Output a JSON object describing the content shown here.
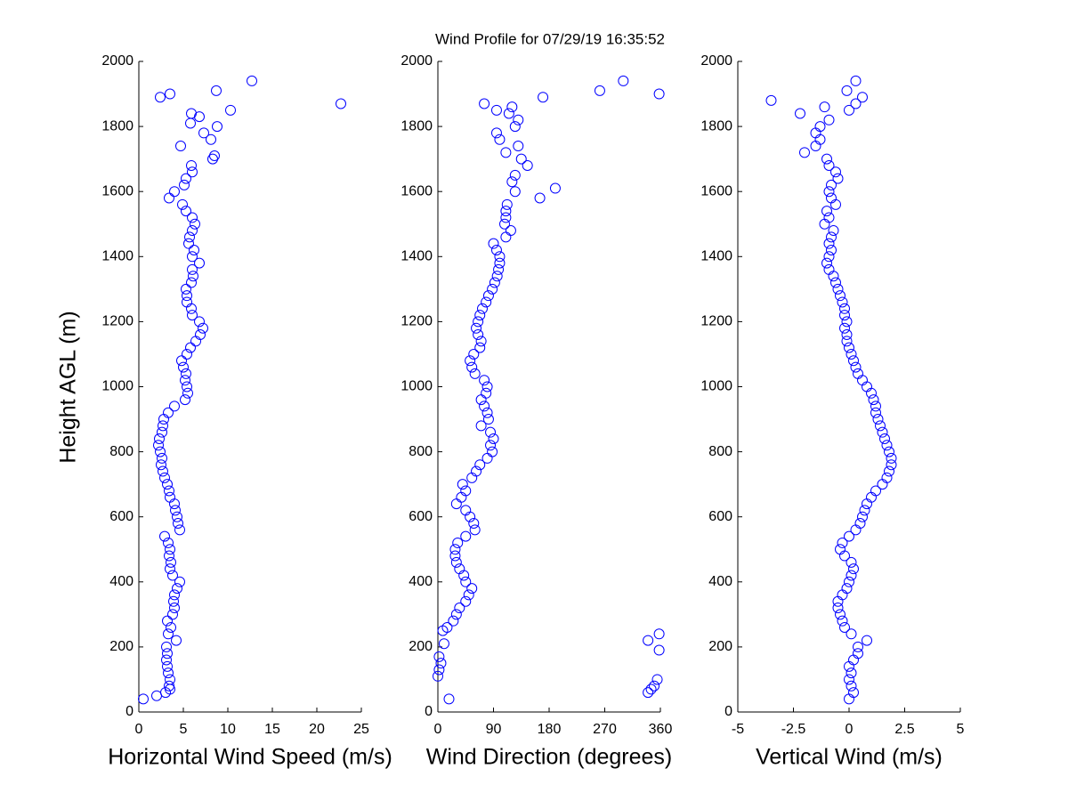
{
  "chart_data": [
    {
      "type": "scatter",
      "xlabel": "Horizontal Wind Speed (m/s)",
      "ylabel": "Height AGL (m)",
      "color": "#0000ff",
      "xlim": [
        0,
        25
      ],
      "xticks": [
        0,
        5,
        10,
        15,
        20,
        25
      ],
      "ylim": [
        0,
        2000
      ],
      "yticks": [
        0,
        200,
        400,
        600,
        800,
        1000,
        1200,
        1400,
        1600,
        1800,
        2000
      ],
      "x": [
        0.5,
        2,
        3,
        3.5,
        3.4,
        3.5,
        3.3,
        3.2,
        3.1,
        3.2,
        3.1,
        4.2,
        3.3,
        3.6,
        3.2,
        3.8,
        4,
        3.9,
        4,
        4.3,
        4.6,
        3.8,
        3.5,
        3.6,
        3.4,
        3.5,
        3.3,
        2.9,
        4.6,
        4.4,
        4.3,
        4.1,
        4,
        3.5,
        3.4,
        3.2,
        2.9,
        2.7,
        2.5,
        2.6,
        2.4,
        2.2,
        2.3,
        2.6,
        2.7,
        2.8,
        3.3,
        4,
        5.2,
        5.5,
        5.4,
        5.2,
        5.3,
        5,
        4.8,
        5.4,
        5.8,
        6.4,
        6.9,
        7.2,
        6.8,
        6,
        5.9,
        5.4,
        5.4,
        5.3,
        5.9,
        6.1,
        6,
        6.8,
        6,
        6.2,
        5.6,
        5.7,
        6,
        6.3,
        6,
        5.3,
        4.9,
        3.4,
        4,
        5.1,
        5.3,
        6,
        5.9,
        8.3,
        8.5,
        4.7,
        8.1,
        7.3,
        8.8,
        5.8,
        6.8,
        5.9,
        10.3,
        22.7,
        2.4,
        3.5,
        8.7,
        12.7
      ],
      "y": [
        40,
        50,
        60,
        70,
        80,
        100,
        120,
        140,
        160,
        180,
        200,
        220,
        240,
        260,
        280,
        300,
        320,
        340,
        360,
        380,
        400,
        420,
        440,
        460,
        480,
        500,
        520,
        540,
        560,
        580,
        600,
        620,
        640,
        660,
        680,
        700,
        720,
        740,
        760,
        780,
        800,
        820,
        840,
        860,
        880,
        900,
        920,
        940,
        960,
        980,
        1000,
        1020,
        1040,
        1060,
        1080,
        1100,
        1120,
        1140,
        1160,
        1180,
        1200,
        1220,
        1240,
        1260,
        1280,
        1300,
        1320,
        1340,
        1360,
        1380,
        1400,
        1420,
        1440,
        1460,
        1480,
        1500,
        1520,
        1540,
        1560,
        1580,
        1600,
        1620,
        1640,
        1660,
        1680,
        1700,
        1710,
        1740,
        1760,
        1780,
        1800,
        1810,
        1830,
        1840,
        1850,
        1870,
        1890,
        1900,
        1910,
        1940
      ]
    },
    {
      "type": "scatter",
      "title": "Wind Profile for  07/29/19 16:35:52",
      "xlabel": "Wind Direction (degrees)",
      "color": "#0000ff",
      "xlim": [
        0,
        360
      ],
      "xticks": [
        0,
        90,
        180,
        270,
        360
      ],
      "ylim": [
        0,
        2000
      ],
      "yticks": [
        0,
        200,
        400,
        600,
        800,
        1000,
        1200,
        1400,
        1600,
        1800,
        2000
      ],
      "x": [
        18,
        340,
        345,
        350,
        355,
        0,
        2,
        5,
        2,
        358,
        10,
        340,
        358,
        8,
        15,
        25,
        30,
        35,
        45,
        50,
        55,
        45,
        42,
        35,
        30,
        28,
        28,
        32,
        45,
        60,
        58,
        52,
        45,
        30,
        38,
        45,
        40,
        55,
        62,
        68,
        80,
        88,
        85,
        90,
        85,
        70,
        82,
        80,
        75,
        70,
        78,
        80,
        75,
        60,
        55,
        52,
        58,
        68,
        70,
        65,
        62,
        65,
        68,
        72,
        78,
        82,
        88,
        92,
        96,
        98,
        100,
        100,
        95,
        90,
        110,
        118,
        108,
        110,
        110,
        112,
        165,
        125,
        190,
        120,
        125,
        145,
        135,
        110,
        130,
        100,
        95,
        125,
        130,
        115,
        95,
        120,
        75,
        170,
        358,
        262,
        300
      ],
      "y": [
        40,
        60,
        70,
        80,
        100,
        110,
        130,
        150,
        170,
        190,
        210,
        220,
        240,
        250,
        260,
        280,
        300,
        320,
        340,
        360,
        380,
        400,
        420,
        440,
        460,
        480,
        500,
        520,
        540,
        560,
        580,
        600,
        620,
        640,
        660,
        680,
        700,
        720,
        740,
        760,
        780,
        800,
        820,
        840,
        860,
        880,
        900,
        920,
        940,
        960,
        980,
        1000,
        1020,
        1040,
        1060,
        1080,
        1100,
        1120,
        1140,
        1160,
        1180,
        1200,
        1220,
        1240,
        1260,
        1280,
        1300,
        1320,
        1340,
        1360,
        1380,
        1400,
        1420,
        1440,
        1460,
        1480,
        1500,
        1520,
        1540,
        1560,
        1580,
        1600,
        1610,
        1630,
        1650,
        1680,
        1700,
        1720,
        1740,
        1760,
        1780,
        1800,
        1820,
        1840,
        1850,
        1860,
        1870,
        1890,
        1900,
        1910,
        1940
      ]
    },
    {
      "type": "scatter",
      "xlabel": "Vertical Wind (m/s)",
      "color": "#0000ff",
      "xlim": [
        -5,
        5
      ],
      "xticks": [
        -5,
        -2.5,
        0,
        2.5,
        5
      ],
      "ylim": [
        0,
        2000
      ],
      "yticks": [
        0,
        200,
        400,
        600,
        800,
        1000,
        1200,
        1400,
        1600,
        1800,
        2000
      ],
      "x": [
        0,
        0.2,
        0.1,
        0,
        0.1,
        0,
        0.2,
        0.4,
        0.4,
        0.8,
        0.1,
        -0.2,
        -0.3,
        -0.4,
        -0.5,
        -0.5,
        -0.3,
        -0.1,
        0,
        0.1,
        0.2,
        0.1,
        -0.2,
        -0.4,
        -0.3,
        0,
        0.3,
        0.5,
        0.6,
        0.7,
        0.8,
        1,
        1.2,
        1.5,
        1.7,
        1.8,
        1.9,
        1.9,
        1.8,
        1.7,
        1.6,
        1.5,
        1.4,
        1.3,
        1.2,
        1.2,
        1.1,
        1,
        0.8,
        0.6,
        0.4,
        0.3,
        0.2,
        0.1,
        0,
        -0.1,
        -0.1,
        -0.2,
        -0.1,
        -0.2,
        -0.2,
        -0.3,
        -0.4,
        -0.5,
        -0.6,
        -0.7,
        -0.9,
        -1,
        -0.9,
        -0.8,
        -0.9,
        -0.8,
        -0.7,
        -1.1,
        -0.9,
        -1,
        -0.6,
        -0.8,
        -0.9,
        -0.8,
        -0.5,
        -0.6,
        -0.9,
        -1,
        -2,
        -1.5,
        -1.3,
        -1.5,
        -1.3,
        -0.9,
        -2.2,
        0,
        -1.1,
        0.3,
        -3.5,
        0.6,
        -0.1,
        0.3
      ],
      "y": [
        40,
        60,
        80,
        100,
        120,
        140,
        160,
        180,
        200,
        220,
        240,
        260,
        280,
        300,
        320,
        340,
        360,
        380,
        400,
        420,
        440,
        460,
        480,
        500,
        520,
        540,
        560,
        580,
        600,
        620,
        640,
        660,
        680,
        700,
        720,
        740,
        760,
        780,
        800,
        820,
        840,
        860,
        880,
        900,
        920,
        940,
        960,
        980,
        1000,
        1020,
        1040,
        1060,
        1080,
        1100,
        1120,
        1140,
        1160,
        1180,
        1200,
        1220,
        1240,
        1260,
        1280,
        1300,
        1320,
        1340,
        1360,
        1380,
        1400,
        1420,
        1440,
        1460,
        1480,
        1500,
        1520,
        1540,
        1560,
        1580,
        1600,
        1620,
        1640,
        1660,
        1680,
        1700,
        1720,
        1740,
        1760,
        1780,
        1800,
        1820,
        1840,
        1850,
        1860,
        1870,
        1880,
        1890,
        1910,
        1940
      ]
    }
  ]
}
